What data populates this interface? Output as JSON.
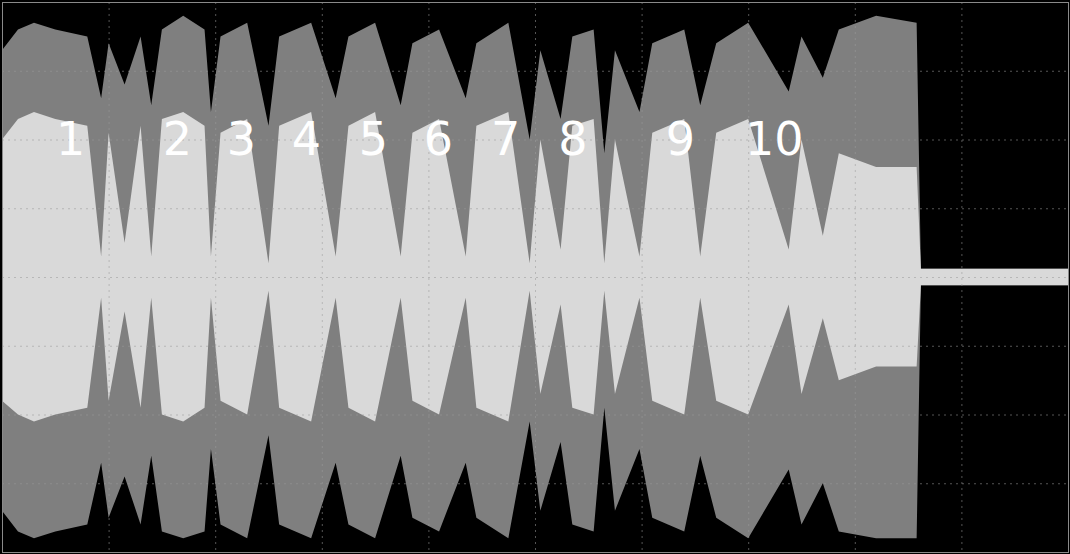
{
  "chart_data": {
    "type": "area",
    "x": [
      0,
      0.15,
      0.3,
      0.5,
      0.8,
      0.93,
      1.0,
      1.15,
      1.3,
      1.4,
      1.5,
      1.7,
      1.9,
      1.96,
      2.05,
      2.3,
      2.5,
      2.6,
      2.9,
      3.13,
      3.25,
      3.5,
      3.74,
      3.85,
      4.1,
      4.35,
      4.45,
      4.75,
      4.95,
      5.05,
      5.24,
      5.35,
      5.55,
      5.65,
      5.75,
      5.98,
      6.1,
      6.4,
      6.55,
      6.7,
      7.0,
      7.38,
      7.5,
      7.7,
      7.85,
      8.2,
      8.58,
      8.62,
      10
    ],
    "series": [
      {
        "color": "#7f7f7f",
        "values": [
          3.3,
          3.6,
          3.7,
          3.6,
          3.5,
          2.6,
          3.4,
          2.8,
          3.5,
          2.5,
          3.6,
          3.8,
          3.6,
          2.4,
          3.5,
          3.7,
          2.2,
          3.5,
          3.7,
          2.6,
          3.5,
          3.7,
          2.5,
          3.4,
          3.6,
          2.6,
          3.4,
          3.7,
          2.0,
          3.3,
          2.3,
          3.5,
          3.6,
          1.8,
          3.3,
          2.4,
          3.4,
          3.6,
          2.5,
          3.4,
          3.7,
          2.7,
          3.5,
          2.9,
          3.6,
          3.8,
          3.7,
          0.12,
          0.12
        ],
        "lower": [
          -3.4,
          -3.7,
          -3.8,
          -3.7,
          -3.6,
          -2.7,
          -3.5,
          -2.9,
          -3.6,
          -2.6,
          -3.7,
          -3.8,
          -3.7,
          -2.5,
          -3.6,
          -3.8,
          -2.3,
          -3.6,
          -3.8,
          -2.7,
          -3.6,
          -3.8,
          -2.6,
          -3.5,
          -3.7,
          -2.7,
          -3.5,
          -3.8,
          -2.1,
          -3.4,
          -2.4,
          -3.6,
          -3.7,
          -1.9,
          -3.4,
          -2.5,
          -3.5,
          -3.7,
          -2.6,
          -3.5,
          -3.8,
          -2.8,
          -3.6,
          -3.0,
          -3.7,
          -3.8,
          -3.8,
          -0.12,
          -0.12
        ]
      },
      {
        "color": "#d9d9d9",
        "values": [
          2.0,
          2.3,
          2.4,
          2.3,
          2.2,
          0.3,
          2.1,
          0.5,
          2.2,
          0.3,
          2.3,
          2.4,
          2.2,
          0.3,
          2.1,
          2.3,
          0.2,
          2.2,
          2.4,
          0.3,
          2.2,
          2.4,
          0.3,
          2.1,
          2.3,
          0.3,
          2.2,
          2.4,
          0.2,
          2.0,
          0.4,
          2.2,
          2.3,
          0.2,
          2.0,
          0.3,
          2.1,
          2.3,
          0.3,
          2.1,
          2.3,
          0.4,
          2.0,
          0.6,
          1.8,
          1.6,
          1.6,
          0.12,
          0.12
        ],
        "lower": [
          -1.8,
          -2.0,
          -2.1,
          -2.0,
          -1.9,
          -0.3,
          -1.8,
          -0.5,
          -1.9,
          -0.3,
          -2.0,
          -2.1,
          -1.9,
          -0.3,
          -1.8,
          -2.0,
          -0.2,
          -1.9,
          -2.1,
          -0.3,
          -1.9,
          -2.1,
          -0.3,
          -1.8,
          -2.0,
          -0.3,
          -1.9,
          -2.1,
          -0.2,
          -1.7,
          -0.4,
          -1.9,
          -2.0,
          -0.2,
          -1.7,
          -0.3,
          -1.8,
          -2.0,
          -0.3,
          -1.8,
          -2.0,
          -0.4,
          -1.7,
          -0.6,
          -1.5,
          -1.3,
          -1.3,
          -0.12,
          -0.12
        ]
      }
    ],
    "xlim": [
      0,
      10
    ],
    "ylim": [
      -4,
      4
    ],
    "xticks": [
      0,
      1,
      2,
      3,
      4,
      5,
      6,
      7,
      8,
      9,
      10
    ],
    "yticks": [
      -4,
      -3,
      -2,
      -1,
      0,
      1,
      2,
      3,
      4
    ],
    "grid": true,
    "tick_labels": false,
    "annotations": [
      {
        "text": "1",
        "x": 0.64,
        "y": 2.0
      },
      {
        "text": "2",
        "x": 1.64,
        "y": 2.0
      },
      {
        "text": "3",
        "x": 2.24,
        "y": 2.0
      },
      {
        "text": "4",
        "x": 2.85,
        "y": 2.0
      },
      {
        "text": "5",
        "x": 3.48,
        "y": 2.0
      },
      {
        "text": "6",
        "x": 4.09,
        "y": 2.0
      },
      {
        "text": "7",
        "x": 4.72,
        "y": 2.0
      },
      {
        "text": "8",
        "x": 5.35,
        "y": 2.0
      },
      {
        "text": "9",
        "x": 6.36,
        "y": 2.0
      },
      {
        "text": "10",
        "x": 7.24,
        "y": 2.0
      }
    ]
  }
}
